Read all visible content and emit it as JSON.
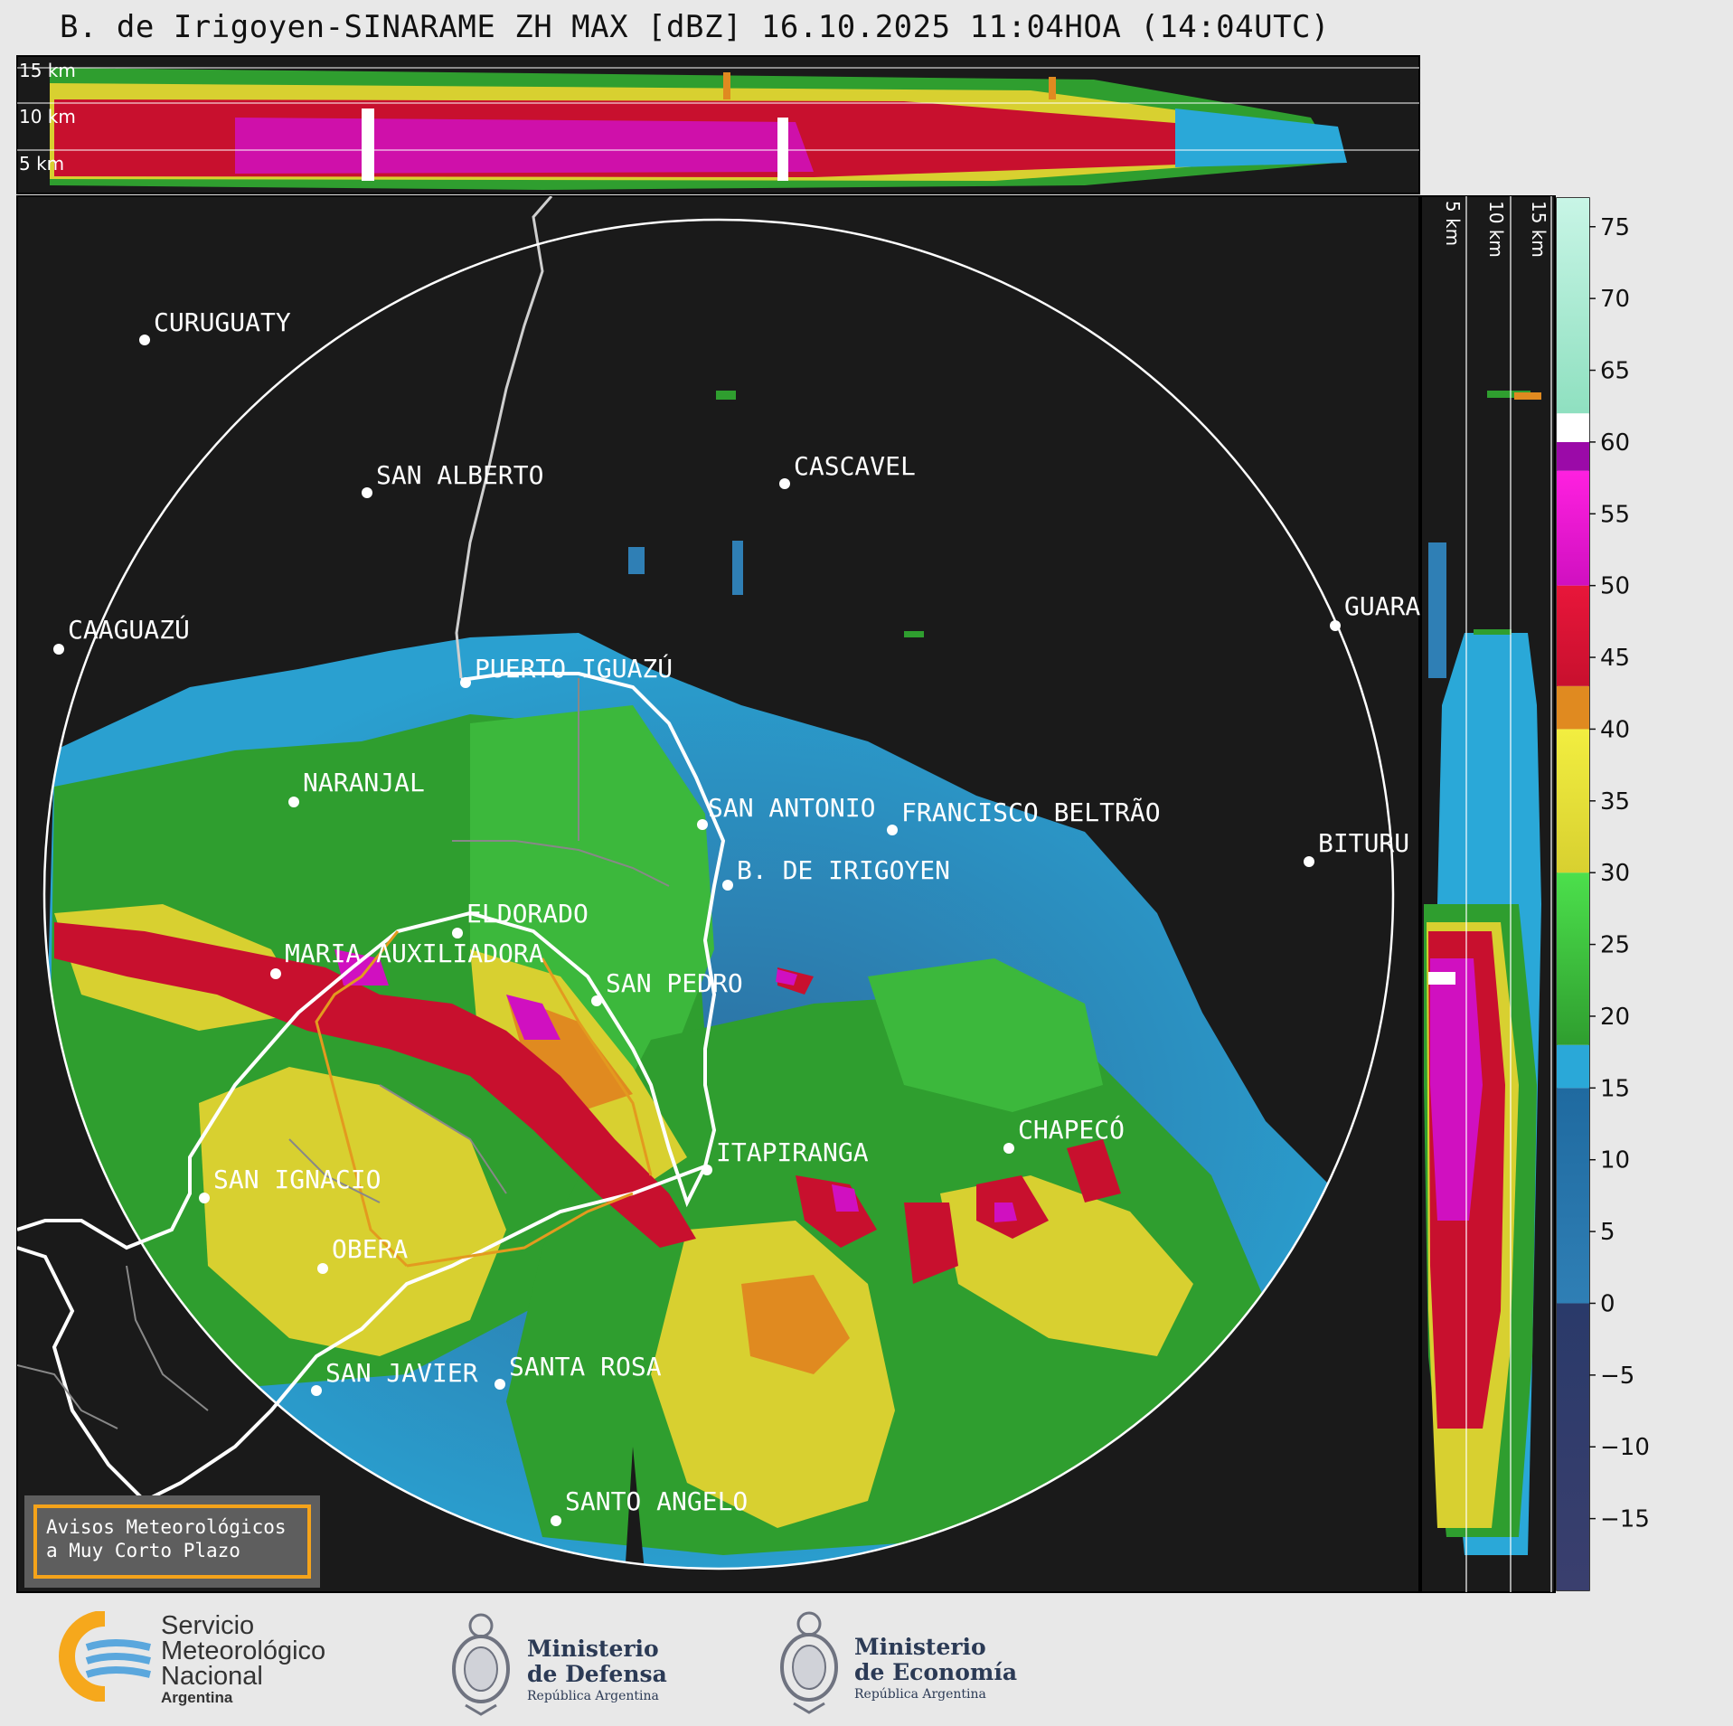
{
  "title": "B. de Irigoyen-SINARAME ZH MAX [dBZ] 16.10.2025 11:04HOA (14:04UTC)",
  "top_panel_heights": [
    "15 km",
    "10 km",
    "5 km"
  ],
  "side_panel_heights": [
    "5 km",
    "10 km",
    "15 km"
  ],
  "cities": [
    {
      "name": "CURUGUATY"
    },
    {
      "name": "SAN ALBERTO"
    },
    {
      "name": "CASCAVEL"
    },
    {
      "name": "CAAGUAZÚ"
    },
    {
      "name": "GUARA"
    },
    {
      "name": "PUERTO IGUAZÚ"
    },
    {
      "name": "NARANJAL"
    },
    {
      "name": "SAN ANTONIO"
    },
    {
      "name": "FRANCISCO BELTRÃO"
    },
    {
      "name": "BITURU"
    },
    {
      "name": "B. DE IRIGOYEN"
    },
    {
      "name": "ELDORADO"
    },
    {
      "name": "MARIA AUXILIADORA"
    },
    {
      "name": "SAN PEDRO"
    },
    {
      "name": "CHAPECÓ"
    },
    {
      "name": "ITAPIRANGA"
    },
    {
      "name": "SAN IGNACIO"
    },
    {
      "name": "OBERA"
    },
    {
      "name": "SAN JAVIER"
    },
    {
      "name": "SANTA ROSA"
    },
    {
      "name": "SANTO ANGELO"
    }
  ],
  "colorbar": {
    "unit": "dBZ",
    "min": -20,
    "max": 77,
    "ticks": [
      "75",
      "70",
      "65",
      "60",
      "55",
      "50",
      "45",
      "40",
      "35",
      "30",
      "25",
      "20",
      "15",
      "10",
      "5",
      "0",
      "−5",
      "−10",
      "−15"
    ],
    "colors": {
      "v_below_0": "#3a3f6e",
      "v0_15": "#2f7fb5",
      "v15_18": "#2aa8d8",
      "v18_30": "#2f9e2f",
      "v30_40": "#d8d030",
      "v40_43": "#e08a20",
      "v43_50": "#c8102e",
      "v50_58": "#d010c0",
      "v58_60": "#9b0aa8",
      "v60_62": "#ffffff",
      "v62_77": "#8fe0c0"
    }
  },
  "aviso": {
    "line1": "Avisos Meteorológicos",
    "line2": "a Muy Corto Plazo"
  },
  "footer": {
    "smn_line1": "Servicio",
    "smn_line2": "Meteorológico",
    "smn_line3": "Nacional",
    "smn_line4": "Argentina",
    "defensa_line1": "Ministerio",
    "defensa_line2": "de Defensa",
    "defensa_line3": "República Argentina",
    "economia_line1": "Ministerio",
    "economia_line2": "de Economía",
    "economia_line3": "República Argentina"
  }
}
